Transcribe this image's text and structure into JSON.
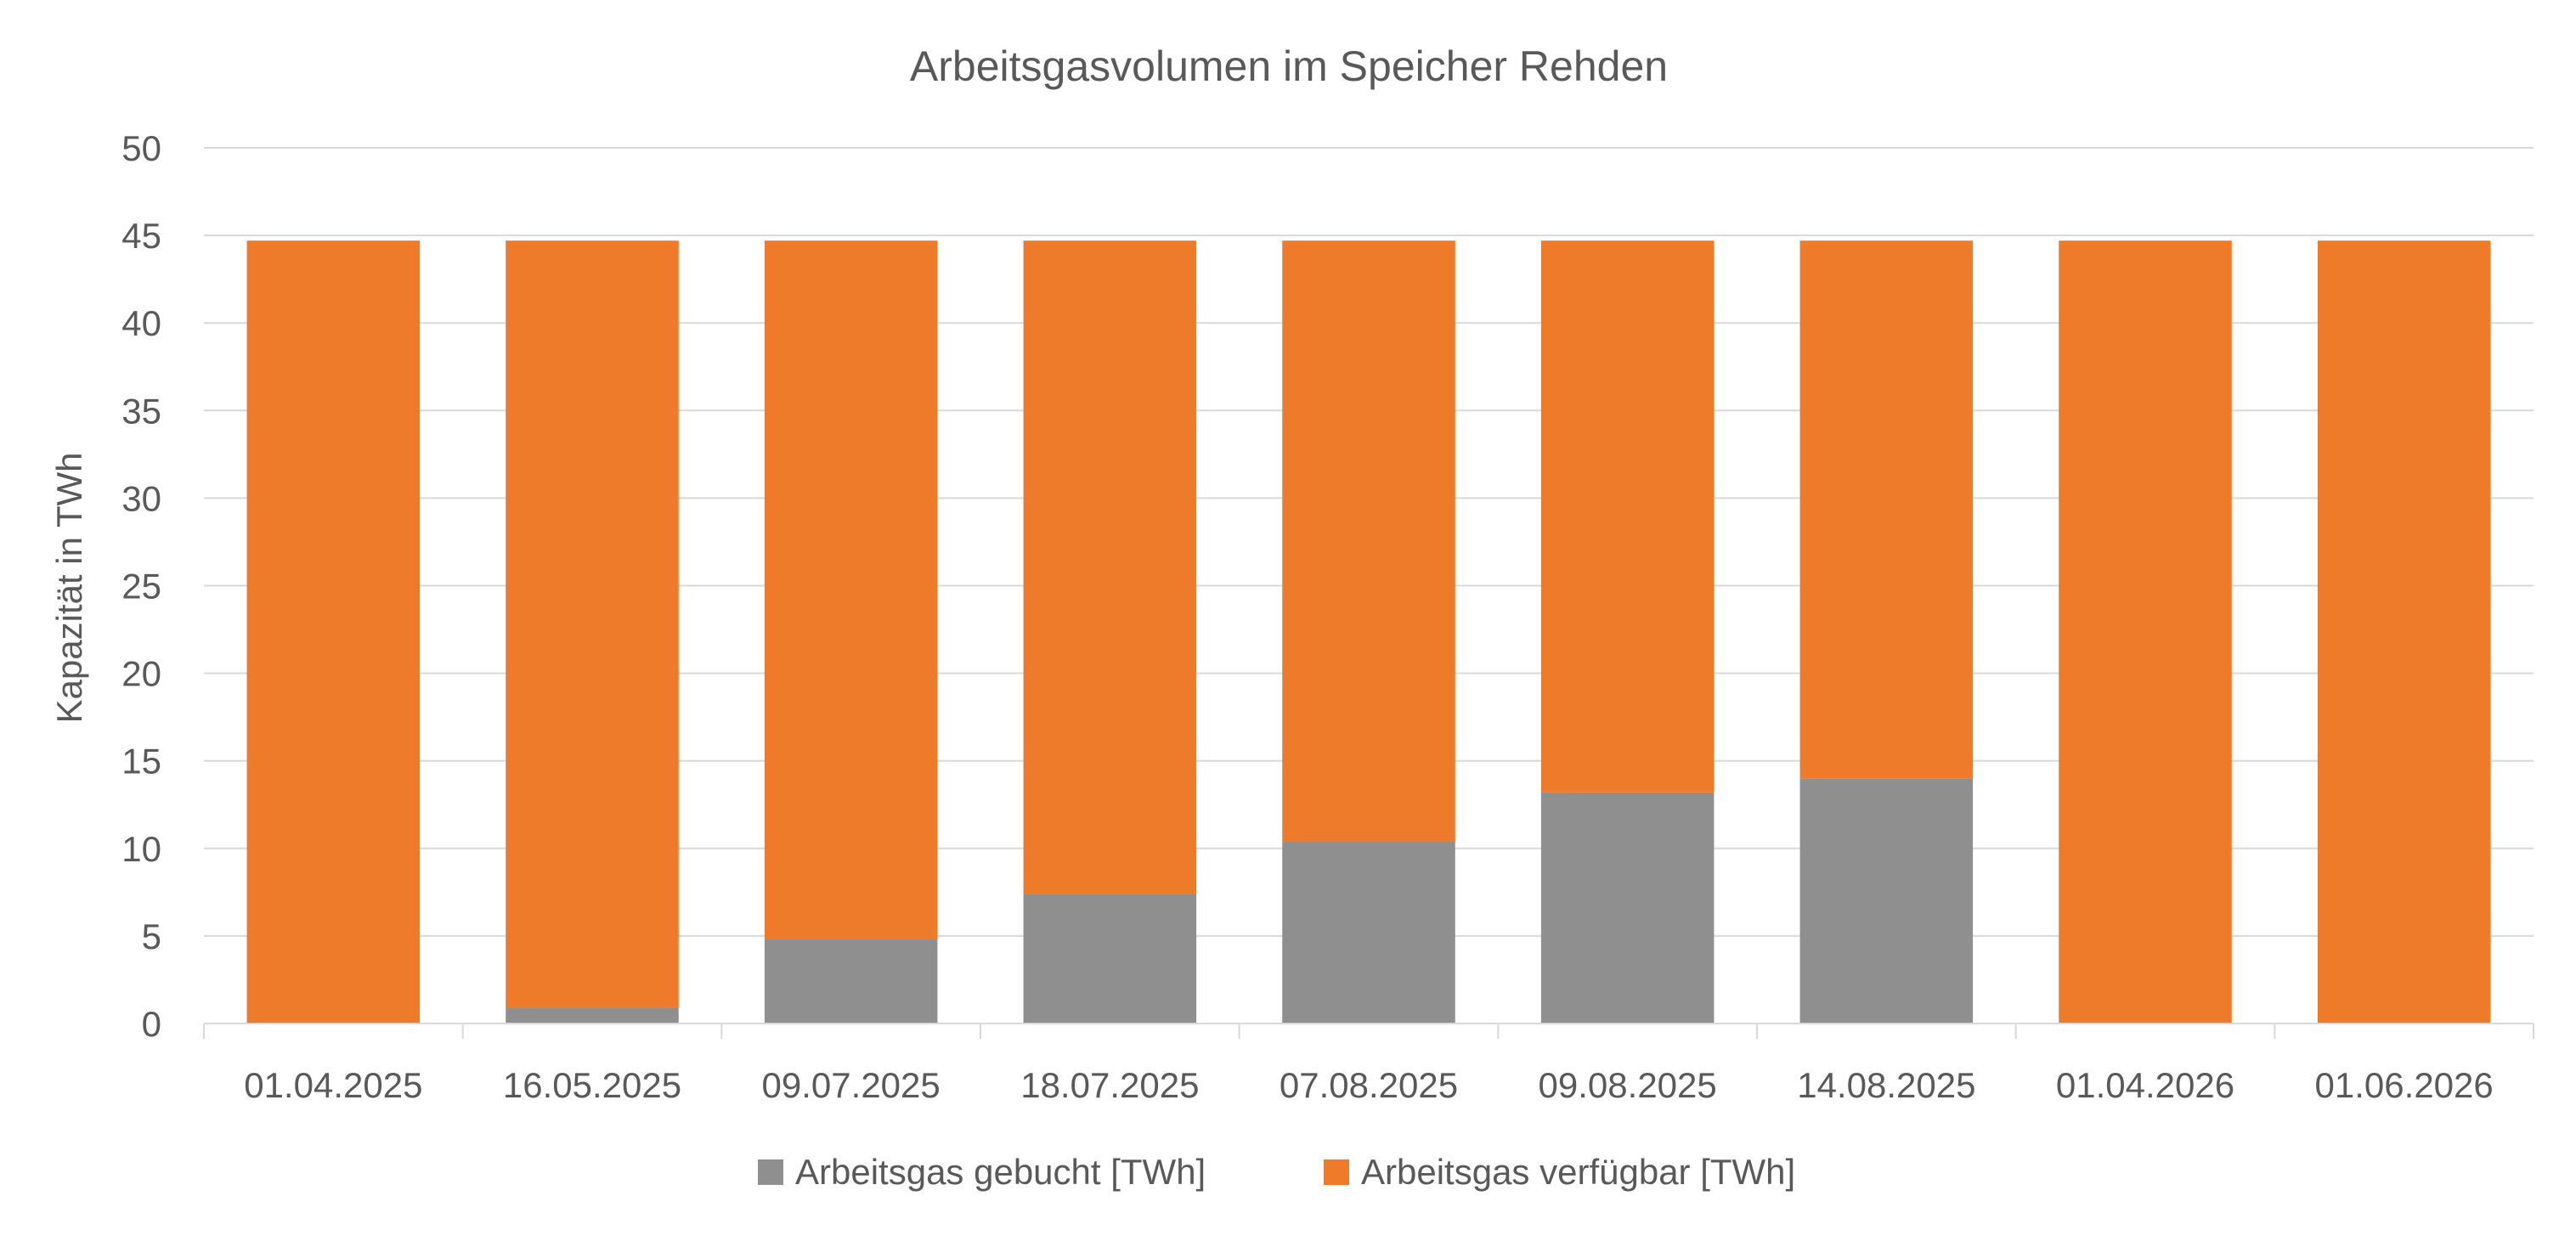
{
  "chart_data": {
    "type": "bar",
    "stacked": true,
    "title": "Arbeitsgasvolumen im Speicher Rehden",
    "xlabel": "",
    "ylabel": "Kapazität in TWh",
    "categories": [
      "01.04.2025",
      "16.05.2025",
      "09.07.2025",
      "18.07.2025",
      "07.08.2025",
      "09.08.2025",
      "14.08.2025",
      "01.04.2026",
      "01.06.2026"
    ],
    "series": [
      {
        "name": "Arbeitsgas gebucht [TWh]",
        "color": "#8f8f8f",
        "values": [
          0,
          0.9,
          4.8,
          7.4,
          10.4,
          13.2,
          14.0,
          0,
          0
        ]
      },
      {
        "name": "Arbeitsgas verfügbar [TWh]",
        "color": "#ee7b2a",
        "values": [
          44.7,
          43.8,
          39.9,
          37.3,
          34.3,
          31.5,
          30.7,
          44.7,
          44.7
        ]
      }
    ],
    "ylim": [
      0,
      50
    ],
    "yticks": [
      0,
      5,
      10,
      15,
      20,
      25,
      30,
      35,
      40,
      45,
      50
    ],
    "grid": true,
    "legend_position": "bottom",
    "colors": {
      "gridline": "#d9d9d9",
      "axis": "#d9d9d9",
      "text": "#595959"
    }
  }
}
